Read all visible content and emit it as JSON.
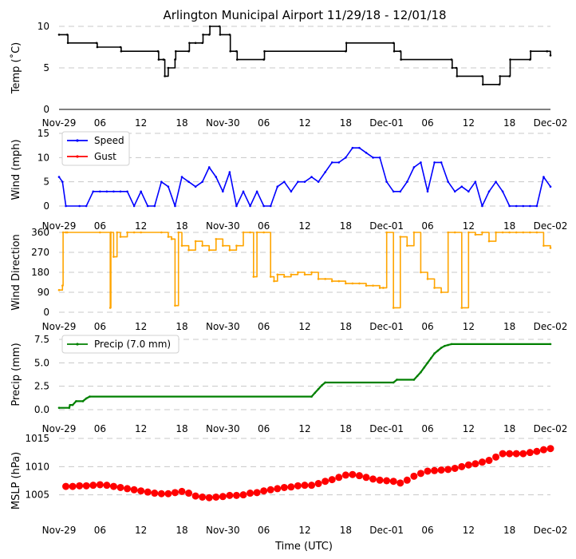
{
  "figure": {
    "title": "Arlington Municipal Airport 11/29/18 - 12/01/18",
    "xlabel": "Time (UTC)"
  },
  "colors": {
    "temp": "#000000",
    "speed": "#0000ff",
    "gust": "#ff0000",
    "direction": "#ffa500",
    "precip": "#008000",
    "mslp": "#ff0000",
    "grid": "#c8c8c8"
  },
  "chart_data": [
    {
      "type": "line",
      "id": "temp",
      "ylabel": "Temp (˚C)",
      "ylim": [
        0,
        10
      ],
      "yticks": [
        0,
        5,
        10
      ],
      "x_unit": "hours since Nov-29 00 UTC",
      "xlim": [
        0,
        72
      ],
      "xticks": [
        0,
        6,
        12,
        18,
        24,
        30,
        36,
        42,
        48,
        54,
        60,
        66,
        72
      ],
      "xticklabels": [
        "Nov-29",
        "06",
        "12",
        "18",
        "Nov-30",
        "06",
        "12",
        "18",
        "Dec-01",
        "06",
        "12",
        "18",
        "Dec-02"
      ],
      "series": [
        {
          "name": "Temp",
          "x": [
            0,
            1.2,
            1.3,
            5.5,
            5.6,
            9.0,
            9.1,
            14.5,
            14.6,
            15.3,
            15.5,
            16.0,
            17.0,
            17.1,
            19.0,
            19.1,
            20.0,
            21.0,
            21.1,
            22.0,
            22.1,
            23.5,
            23.6,
            25.0,
            25.1,
            26.0,
            26.1,
            30.0,
            30.1,
            42.0,
            42.1,
            49.0,
            49.1,
            50.0,
            50.1,
            57.5,
            57.6,
            58.2,
            58.3,
            62.0,
            62.1,
            64.5,
            64.6,
            66.0,
            66.1,
            69.0,
            69.1,
            71.5,
            72.0
          ],
          "values": [
            9,
            9,
            8,
            8,
            7.5,
            7.5,
            7,
            7,
            6,
            6,
            4,
            5,
            6,
            7,
            7,
            8,
            8,
            8,
            9,
            9,
            10,
            10,
            9,
            9,
            7,
            7,
            6,
            6,
            7,
            7,
            8,
            8,
            7,
            7,
            6,
            6,
            5,
            5,
            4,
            4,
            3,
            3,
            4,
            4,
            6,
            6,
            7,
            7,
            6.5
          ]
        }
      ]
    },
    {
      "type": "line",
      "id": "wind",
      "ylabel": "Wind (mph)",
      "ylim": [
        0,
        15
      ],
      "yticks": [
        0,
        5,
        10,
        15
      ],
      "legend": "upper-left",
      "xlim": [
        0,
        72
      ],
      "xticks": [
        0,
        6,
        12,
        18,
        24,
        30,
        36,
        42,
        48,
        54,
        60,
        66,
        72
      ],
      "xticklabels": [
        "Nov-29",
        "06",
        "12",
        "18",
        "Nov-30",
        "06",
        "12",
        "18",
        "Dec-01",
        "06",
        "12",
        "18",
        "Dec-02"
      ],
      "series": [
        {
          "name": "Speed",
          "x": [
            0,
            0.5,
            1,
            3,
            4,
            5,
            6,
            7,
            8,
            9,
            10,
            11,
            12,
            13,
            14,
            15,
            16,
            17,
            18,
            19,
            20,
            21,
            22,
            23,
            24,
            25,
            26,
            27,
            28,
            29,
            30,
            31,
            32,
            33,
            34,
            35,
            36,
            37,
            38,
            39,
            40,
            41,
            42,
            43,
            44,
            45,
            46,
            47,
            48,
            49,
            50,
            51,
            52,
            53,
            54,
            55,
            56,
            57,
            58,
            59,
            60,
            61,
            62,
            63,
            64,
            65,
            66,
            67,
            68,
            69,
            70,
            71,
            72
          ],
          "values": [
            6,
            5,
            0,
            0,
            0,
            3,
            3,
            3,
            3,
            3,
            3,
            0,
            3,
            0,
            0,
            5,
            4,
            0,
            6,
            5,
            4,
            5,
            8,
            6,
            3,
            7,
            0,
            3,
            0,
            3,
            0,
            0,
            4,
            5,
            3,
            5,
            5,
            6,
            5,
            7,
            9,
            9,
            10,
            12,
            12,
            11,
            10,
            10,
            5,
            3,
            3,
            5,
            8,
            9,
            3,
            9,
            9,
            5,
            3,
            4,
            3,
            5,
            0,
            3,
            5,
            3,
            0,
            0,
            0,
            0,
            0,
            6,
            4
          ]
        },
        {
          "name": "Gust",
          "x": [],
          "values": []
        }
      ]
    },
    {
      "type": "line",
      "id": "direction",
      "ylabel": "Wind Direction",
      "ylim": [
        0,
        360
      ],
      "yticks": [
        0,
        90,
        180,
        270,
        360
      ],
      "xlim": [
        0,
        72
      ],
      "xticks": [
        0,
        6,
        12,
        18,
        24,
        30,
        36,
        42,
        48,
        54,
        60,
        66,
        72
      ],
      "xticklabels": [
        "Nov-29",
        "06",
        "12",
        "18",
        "Nov-30",
        "06",
        "12",
        "18",
        "Dec-01",
        "06",
        "12",
        "18",
        "Dec-02"
      ],
      "series": [
        {
          "name": "Wind Direction",
          "x": [
            0,
            0.5,
            0.6,
            1,
            1.2,
            6,
            7.5,
            7.6,
            8,
            8.5,
            9,
            10,
            11,
            12,
            15,
            16,
            16.5,
            17,
            17.5,
            18,
            19,
            20,
            21,
            22,
            23,
            24,
            25,
            26,
            27,
            28,
            28.5,
            29,
            30,
            31,
            31.5,
            32,
            33,
            34,
            35,
            36,
            37,
            38,
            39,
            40,
            41,
            42,
            43,
            44,
            45,
            46,
            47,
            47.5,
            48,
            49,
            50,
            51,
            52,
            53,
            54,
            55,
            56,
            57,
            58,
            59,
            60,
            61,
            62,
            63,
            64,
            65,
            66,
            67,
            68,
            69,
            70,
            71,
            72
          ],
          "values": [
            100,
            120,
            360,
            360,
            360,
            360,
            20,
            360,
            250,
            360,
            340,
            360,
            360,
            360,
            360,
            340,
            330,
            30,
            360,
            300,
            280,
            320,
            300,
            280,
            330,
            300,
            280,
            300,
            360,
            360,
            160,
            360,
            360,
            160,
            140,
            170,
            160,
            170,
            180,
            170,
            180,
            150,
            150,
            140,
            140,
            130,
            130,
            130,
            120,
            120,
            110,
            110,
            360,
            20,
            340,
            300,
            360,
            180,
            150,
            110,
            90,
            360,
            360,
            20,
            360,
            350,
            360,
            320,
            360,
            360,
            360,
            360,
            360,
            360,
            360,
            300,
            290
          ]
        }
      ]
    },
    {
      "type": "line",
      "id": "precip",
      "ylabel": "Precip (mm)",
      "ylim": [
        0,
        7.5
      ],
      "yticks": [
        0.0,
        2.5,
        5.0,
        7.5
      ],
      "yticklabels": [
        "0.0",
        "2.5",
        "5.0",
        "7.5"
      ],
      "legend": "upper-left",
      "xlim": [
        0,
        72
      ],
      "xticks": [
        0,
        6,
        12,
        18,
        24,
        30,
        36,
        42,
        48,
        54,
        60,
        66,
        72
      ],
      "xticklabels": [
        "Nov-29",
        "06",
        "12",
        "18",
        "Nov-30",
        "06",
        "12",
        "18",
        "Dec-01",
        "06",
        "12",
        "18",
        "Dec-02"
      ],
      "series": [
        {
          "name": "Precip (7.0 mm)",
          "x": [
            0,
            1.5,
            1.6,
            2,
            2.5,
            3.5,
            4,
            4.5,
            37,
            37.5,
            38,
            38.5,
            39,
            49,
            49.5,
            52,
            52.5,
            53,
            53.5,
            54,
            54.5,
            55,
            55.5,
            56,
            56.5,
            57,
            57.5,
            72
          ],
          "values": [
            0.2,
            0.2,
            0.5,
            0.5,
            0.9,
            0.9,
            1.2,
            1.4,
            1.4,
            1.8,
            2.2,
            2.6,
            2.9,
            2.9,
            3.2,
            3.2,
            3.6,
            4.0,
            4.5,
            5.0,
            5.5,
            6.0,
            6.3,
            6.6,
            6.8,
            6.9,
            7.0,
            7.0
          ]
        }
      ]
    },
    {
      "type": "scatter",
      "id": "mslp",
      "ylabel": "MSLP (hPa)",
      "ylim": [
        1000,
        1015
      ],
      "yticks": [
        1005,
        1010,
        1015
      ],
      "xlim": [
        0,
        72
      ],
      "xticks": [
        0,
        6,
        12,
        18,
        24,
        30,
        36,
        42,
        48,
        54,
        60,
        66,
        72
      ],
      "xticklabels": [
        "Nov-29",
        "06",
        "12",
        "18",
        "Nov-30",
        "06",
        "12",
        "18",
        "Dec-01",
        "06",
        "12",
        "18",
        "Dec-02"
      ],
      "series": [
        {
          "name": "MSLP",
          "x": [
            1,
            2,
            3,
            4,
            5,
            6,
            7,
            8,
            9,
            10,
            11,
            12,
            13,
            14,
            15,
            16,
            17,
            18,
            19,
            20,
            21,
            22,
            23,
            24,
            25,
            26,
            27,
            28,
            29,
            30,
            31,
            32,
            33,
            34,
            35,
            36,
            37,
            38,
            39,
            40,
            41,
            42,
            43,
            44,
            45,
            46,
            47,
            48,
            49,
            50,
            51,
            52,
            53,
            54,
            55,
            56,
            57,
            58,
            59,
            60,
            61,
            62,
            63,
            64,
            65,
            66,
            67,
            68,
            69,
            70,
            71,
            72
          ],
          "values": [
            1006.5,
            1006.5,
            1006.6,
            1006.6,
            1006.7,
            1006.8,
            1006.7,
            1006.5,
            1006.3,
            1006.1,
            1005.9,
            1005.7,
            1005.5,
            1005.3,
            1005.2,
            1005.2,
            1005.4,
            1005.6,
            1005.3,
            1004.8,
            1004.6,
            1004.5,
            1004.6,
            1004.7,
            1004.9,
            1004.9,
            1005.0,
            1005.3,
            1005.4,
            1005.7,
            1005.9,
            1006.1,
            1006.3,
            1006.4,
            1006.6,
            1006.7,
            1006.7,
            1007.0,
            1007.4,
            1007.7,
            1008.1,
            1008.5,
            1008.6,
            1008.4,
            1008.1,
            1007.8,
            1007.6,
            1007.5,
            1007.4,
            1007.1,
            1007.6,
            1008.3,
            1008.8,
            1009.2,
            1009.3,
            1009.4,
            1009.5,
            1009.7,
            1010.0,
            1010.3,
            1010.5,
            1010.8,
            1011.1,
            1011.7,
            1012.3,
            1012.3,
            1012.3,
            1012.3,
            1012.5,
            1012.7,
            1013.0,
            1013.2
          ]
        }
      ]
    }
  ]
}
